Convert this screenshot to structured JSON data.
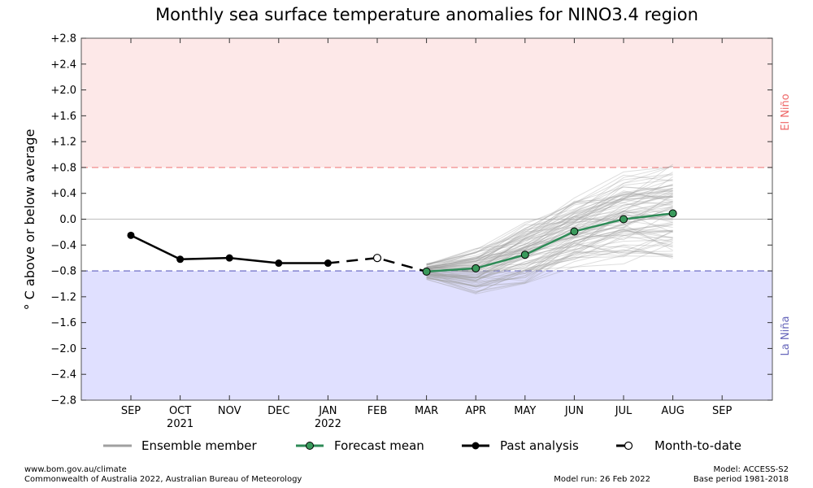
{
  "chart_data": {
    "type": "line",
    "title": "Monthly sea surface temperature anomalies for NINO3.4 region",
    "xlabel": "",
    "ylabel": "° C above or below average",
    "ylim": [
      -2.8,
      2.8
    ],
    "yticks": [
      "+2.8",
      "+2.4",
      "+2.0",
      "+1.6",
      "+1.2",
      "+0.8",
      "+0.4",
      "0.0",
      "−0.4",
      "−0.8",
      "−1.2",
      "−1.6",
      "−2.0",
      "−2.4",
      "−2.8"
    ],
    "ytick_values": [
      2.8,
      2.4,
      2.0,
      1.6,
      1.2,
      0.8,
      0.4,
      0.0,
      -0.4,
      -0.8,
      -1.2,
      -1.6,
      -2.0,
      -2.4,
      -2.8
    ],
    "categories": [
      "SEP",
      "OCT",
      "NOV",
      "DEC",
      "JAN",
      "FEB",
      "MAR",
      "APR",
      "MAY",
      "JUN",
      "JUL",
      "AUG",
      "SEP"
    ],
    "year_labels": [
      {
        "category_index": 1,
        "text": "2021"
      },
      {
        "category_index": 4,
        "text": "2022"
      }
    ],
    "thresholds": {
      "el_nino": 0.8,
      "la_nina": -0.8
    },
    "region_labels": {
      "el_nino": "El Niño",
      "la_nina": "La Niña"
    },
    "colors": {
      "el_nino_fill": "#fde8e8",
      "la_nina_fill": "#e0e0ff",
      "el_nino_line": "#f08080",
      "la_nina_line": "#6060c0",
      "el_nino_text": "#ee6666",
      "la_nina_text": "#6666bb",
      "ensemble": "#a0a0a0",
      "forecast": "#2e8b57",
      "forecast_marker": "#3a9a5c",
      "past": "#000000"
    },
    "series": [
      {
        "name": "Past analysis",
        "x": [
          "SEP",
          "OCT",
          "NOV",
          "DEC",
          "JAN"
        ],
        "values": [
          -0.25,
          -0.62,
          -0.6,
          -0.68,
          -0.68
        ]
      },
      {
        "name": "Month-to-date",
        "x": [
          "JAN",
          "FEB",
          "MAR"
        ],
        "values": [
          -0.68,
          -0.6,
          -0.81
        ]
      },
      {
        "name": "Forecast mean",
        "x": [
          "MAR",
          "APR",
          "MAY",
          "JUN",
          "JUL",
          "AUG"
        ],
        "values": [
          -0.81,
          -0.76,
          -0.55,
          -0.19,
          0.0,
          0.09
        ]
      }
    ],
    "ensemble_envelope": {
      "x": [
        "MAR",
        "APR",
        "MAY",
        "JUN",
        "JUL",
        "AUG"
      ],
      "min": [
        -0.95,
        -1.25,
        -1.05,
        -0.85,
        -0.75,
        -0.75
      ],
      "max": [
        -0.65,
        -0.4,
        0.1,
        0.4,
        0.85,
        1.04
      ]
    },
    "legend": {
      "placement": "bottom",
      "items": [
        "Ensemble member",
        "Forecast mean",
        "Past analysis",
        "Month-to-date"
      ]
    }
  },
  "footer": {
    "website": "www.bom.gov.au/climate",
    "copyright": "Commonwealth of Australia 2022, Australian Bureau of Meteorology",
    "model_run": "Model run: 26 Feb 2022",
    "model": "Model: ACCESS-S2",
    "base_period": "Base period 1981-2018"
  }
}
